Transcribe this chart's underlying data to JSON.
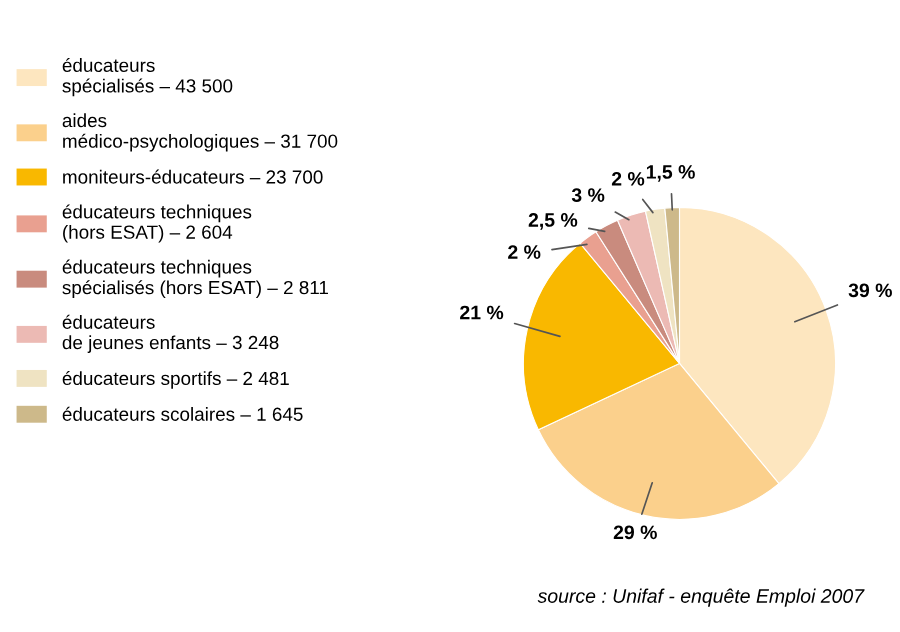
{
  "chart_data": {
    "type": "pie",
    "categories": [
      "éducateurs\nspécialisés – 43 500",
      "aides\nmédico-psychologiques – 31 700",
      "moniteurs-éducateurs – 23 700",
      "éducateurs techniques\n(hors ESAT) – 2 604",
      "éducateurs techniques\nspécialisés (hors ESAT) – 2 811",
      "éducateurs\nde jeunes enfants – 3 248",
      "éducateurs sportifs – 2 481",
      "éducateurs scolaires – 1 645"
    ],
    "values": [
      39,
      29,
      21,
      2,
      2.5,
      3,
      2,
      1.5
    ],
    "value_labels": [
      "39 %",
      "29 %",
      "21 %",
      "2 %",
      "2,5 %",
      "3 %",
      "2 %",
      "1,5 %"
    ],
    "colors": [
      "#fde6bf",
      "#fbd08c",
      "#f9b800",
      "#e9a090",
      "#c98b7e",
      "#ecbab4",
      "#efe3c2",
      "#cdb98a"
    ],
    "legend": "left",
    "annotations": [
      "source : Unifaf - enquête Emploi 2007"
    ]
  }
}
